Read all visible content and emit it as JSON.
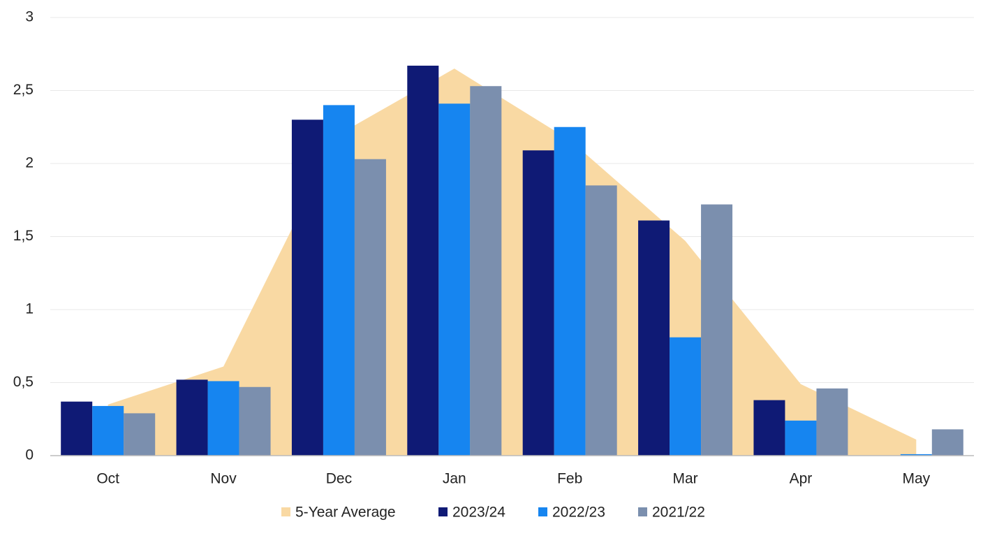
{
  "chart_data": {
    "type": "bar",
    "categories": [
      "Oct",
      "Nov",
      "Dec",
      "Jan",
      "Feb",
      "Mar",
      "Apr",
      "May"
    ],
    "series": [
      {
        "name": "5-Year Average",
        "type": "area",
        "color": "#f9d9a3",
        "values": [
          0.35,
          0.61,
          2.2,
          2.65,
          2.16,
          1.47,
          0.49,
          0.11
        ]
      },
      {
        "name": "2023/24",
        "type": "bar",
        "color": "#0f1a75",
        "values": [
          0.37,
          0.52,
          2.3,
          2.67,
          2.09,
          1.61,
          0.38,
          0
        ]
      },
      {
        "name": "2022/23",
        "type": "bar",
        "color": "#1685f0",
        "values": [
          0.34,
          0.51,
          2.4,
          2.41,
          2.25,
          0.81,
          0.24,
          0.01
        ]
      },
      {
        "name": "2021/22",
        "type": "bar",
        "color": "#7b8fae",
        "values": [
          0.29,
          0.47,
          2.03,
          2.53,
          1.85,
          1.72,
          0.46,
          0.18
        ]
      }
    ],
    "ylim": [
      0,
      3
    ],
    "yticks": [
      0,
      {
        "value": 0.5,
        "label": "0,5"
      },
      1,
      {
        "value": 1.5,
        "label": "1,5"
      },
      2,
      {
        "value": 2.5,
        "label": "2,5"
      },
      3
    ],
    "grid": true,
    "legend": "bottom"
  }
}
